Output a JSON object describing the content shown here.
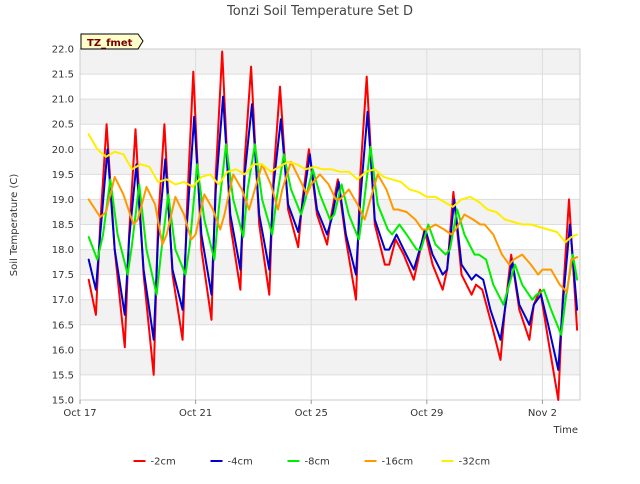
{
  "chart_data": {
    "type": "line",
    "title": "Tonzi Soil Temperature Set D",
    "xlabel": "Time",
    "ylabel": "Soil Temperature (C)",
    "annotation": "TZ_fmet",
    "xlim": [
      0,
      17.3
    ],
    "ylim": [
      15.0,
      22.0
    ],
    "grid": true,
    "legend_position": "bottom",
    "x_ticks": [
      {
        "x": 0,
        "label": "Oct 17"
      },
      {
        "x": 4,
        "label": "Oct 21"
      },
      {
        "x": 8,
        "label": "Oct 25"
      },
      {
        "x": 12,
        "label": "Oct 29"
      },
      {
        "x": 16,
        "label": "Nov 2"
      }
    ],
    "y_ticks": [
      "15.0",
      "15.5",
      "16.0",
      "16.5",
      "17.0",
      "17.5",
      "18.0",
      "18.5",
      "19.0",
      "19.5",
      "20.0",
      "20.5",
      "21.0",
      "21.5",
      "22.0"
    ],
    "series": [
      {
        "name": "-2cm",
        "color": "#ff0000",
        "x": [
          0.3,
          0.55,
          0.7,
          0.92,
          1.2,
          1.55,
          1.7,
          1.92,
          2.2,
          2.55,
          2.7,
          2.92,
          3.2,
          3.55,
          3.7,
          3.92,
          4.2,
          4.55,
          4.7,
          4.92,
          5.2,
          5.55,
          5.7,
          5.92,
          6.2,
          6.55,
          6.7,
          6.92,
          7.2,
          7.55,
          7.7,
          7.92,
          8.2,
          8.55,
          8.7,
          8.92,
          9.2,
          9.55,
          9.7,
          9.92,
          10.2,
          10.55,
          10.7,
          10.92,
          11.2,
          11.55,
          11.7,
          11.92,
          12.2,
          12.55,
          12.7,
          12.92,
          13.2,
          13.55,
          13.7,
          13.92,
          14.2,
          14.55,
          14.7,
          14.92,
          15.2,
          15.55,
          15.7,
          15.92,
          16.2,
          16.55,
          16.7,
          16.92,
          17.2
        ],
        "y": [
          17.4,
          16.7,
          18.5,
          20.5,
          18.0,
          16.05,
          18.3,
          20.4,
          17.5,
          15.5,
          18.5,
          20.5,
          17.5,
          16.2,
          18.8,
          21.55,
          18.0,
          16.6,
          19.5,
          21.95,
          18.5,
          17.2,
          19.8,
          21.65,
          18.5,
          17.1,
          19.5,
          21.25,
          18.8,
          18.05,
          19.0,
          20.0,
          18.7,
          18.1,
          18.7,
          19.4,
          18.2,
          17.0,
          19.5,
          21.45,
          18.5,
          17.7,
          17.7,
          18.2,
          17.9,
          17.4,
          17.8,
          18.4,
          17.7,
          17.2,
          17.6,
          19.15,
          17.5,
          17.1,
          17.3,
          17.2,
          16.6,
          15.8,
          16.8,
          17.9,
          16.8,
          16.2,
          16.9,
          17.2,
          16.2,
          15.0,
          17.0,
          19.0,
          16.4
        ]
      },
      {
        "name": "-4cm",
        "color": "#0000cc",
        "x": [
          0.3,
          0.55,
          0.7,
          0.95,
          1.2,
          1.55,
          1.7,
          1.95,
          2.2,
          2.55,
          2.7,
          2.95,
          3.2,
          3.55,
          3.7,
          3.95,
          4.2,
          4.55,
          4.7,
          4.95,
          5.2,
          5.55,
          5.7,
          5.95,
          6.2,
          6.55,
          6.7,
          6.95,
          7.2,
          7.55,
          7.7,
          7.95,
          8.2,
          8.55,
          8.7,
          8.95,
          9.2,
          9.55,
          9.7,
          9.95,
          10.2,
          10.55,
          10.7,
          10.95,
          11.2,
          11.55,
          11.7,
          11.95,
          12.2,
          12.55,
          12.7,
          12.95,
          13.2,
          13.55,
          13.7,
          13.95,
          14.2,
          14.55,
          14.7,
          14.95,
          15.2,
          15.55,
          15.7,
          15.95,
          16.2,
          16.55,
          16.7,
          16.95,
          17.2
        ],
        "y": [
          17.8,
          17.2,
          18.3,
          20.0,
          18.0,
          16.7,
          18.2,
          19.7,
          17.6,
          16.2,
          18.2,
          19.8,
          17.6,
          16.8,
          18.5,
          20.65,
          18.3,
          17.1,
          19.2,
          21.05,
          18.7,
          17.6,
          19.5,
          20.9,
          18.7,
          17.6,
          19.3,
          20.6,
          18.9,
          18.35,
          18.9,
          19.9,
          18.8,
          18.3,
          18.6,
          19.35,
          18.3,
          17.5,
          19.0,
          20.75,
          18.6,
          18.0,
          18.0,
          18.3,
          18.0,
          17.6,
          17.9,
          18.4,
          17.9,
          17.5,
          17.6,
          19.0,
          17.7,
          17.4,
          17.5,
          17.4,
          16.8,
          16.2,
          16.8,
          17.8,
          16.9,
          16.5,
          16.9,
          17.1,
          16.5,
          15.6,
          16.9,
          18.5,
          16.8
        ]
      },
      {
        "name": "-8cm",
        "color": "#00ee00",
        "x": [
          0.3,
          0.6,
          0.8,
          1.05,
          1.3,
          1.65,
          1.8,
          2.05,
          2.3,
          2.65,
          2.8,
          3.05,
          3.3,
          3.65,
          3.8,
          4.05,
          4.3,
          4.65,
          4.8,
          5.05,
          5.3,
          5.65,
          5.8,
          6.05,
          6.3,
          6.65,
          6.8,
          7.05,
          7.3,
          7.65,
          7.8,
          8.05,
          8.3,
          8.65,
          8.8,
          9.05,
          9.3,
          9.65,
          9.8,
          10.05,
          10.3,
          10.65,
          10.8,
          11.05,
          11.3,
          11.65,
          11.8,
          12.05,
          12.3,
          12.65,
          12.8,
          13.05,
          13.3,
          13.65,
          13.8,
          14.05,
          14.3,
          14.65,
          14.8,
          15.05,
          15.3,
          15.65,
          15.8,
          16.05,
          16.3,
          16.65,
          16.8,
          17.05,
          17.2
        ],
        "y": [
          18.25,
          17.8,
          18.3,
          19.4,
          18.3,
          17.5,
          18.1,
          19.3,
          18.0,
          17.1,
          17.9,
          19.1,
          18.0,
          17.5,
          18.1,
          19.7,
          18.6,
          17.8,
          18.8,
          20.1,
          19.0,
          18.25,
          19.2,
          20.1,
          19.0,
          18.3,
          19.0,
          19.9,
          19.2,
          18.7,
          19.0,
          19.6,
          19.1,
          18.6,
          18.7,
          19.3,
          18.7,
          18.2,
          18.8,
          20.05,
          18.9,
          18.4,
          18.3,
          18.5,
          18.3,
          18.0,
          18.0,
          18.5,
          18.1,
          17.9,
          18.0,
          18.8,
          18.3,
          17.9,
          17.9,
          17.8,
          17.3,
          16.9,
          17.2,
          17.7,
          17.3,
          17.0,
          17.1,
          17.2,
          16.8,
          16.3,
          17.0,
          17.9,
          17.4
        ]
      },
      {
        "name": "-16cm",
        "color": "#ff9900",
        "x": [
          0.3,
          0.7,
          0.9,
          1.2,
          1.5,
          1.85,
          2.0,
          2.3,
          2.6,
          2.85,
          3.0,
          3.3,
          3.6,
          3.85,
          4.0,
          4.3,
          4.6,
          4.85,
          5.0,
          5.3,
          5.6,
          5.85,
          6.0,
          6.3,
          6.6,
          6.85,
          7.0,
          7.3,
          7.6,
          7.85,
          8.0,
          8.3,
          8.6,
          8.85,
          9.0,
          9.3,
          9.6,
          9.85,
          10.0,
          10.3,
          10.6,
          10.85,
          11.0,
          11.3,
          11.6,
          11.85,
          12.0,
          12.3,
          12.6,
          12.85,
          13.0,
          13.3,
          13.6,
          13.85,
          14.0,
          14.3,
          14.6,
          14.85,
          15.0,
          15.3,
          15.6,
          15.85,
          16.0,
          16.3,
          16.6,
          16.85,
          17.0,
          17.2
        ],
        "y": [
          19.0,
          18.65,
          18.75,
          19.45,
          19.1,
          18.5,
          18.6,
          19.25,
          18.9,
          18.1,
          18.3,
          19.05,
          18.7,
          18.2,
          18.3,
          19.1,
          18.8,
          18.4,
          18.7,
          19.5,
          19.2,
          18.8,
          19.1,
          19.7,
          19.3,
          18.8,
          19.2,
          19.75,
          19.4,
          19.1,
          19.3,
          19.5,
          19.3,
          19.0,
          19.0,
          19.2,
          18.9,
          18.6,
          18.9,
          19.5,
          19.2,
          18.8,
          18.8,
          18.75,
          18.6,
          18.4,
          18.4,
          18.5,
          18.4,
          18.3,
          18.4,
          18.7,
          18.6,
          18.5,
          18.5,
          18.3,
          17.9,
          17.7,
          17.8,
          17.9,
          17.7,
          17.5,
          17.6,
          17.6,
          17.3,
          17.15,
          17.8,
          17.85
        ]
      },
      {
        "name": "-32cm",
        "color": "#ffee00",
        "x": [
          0.3,
          0.6,
          0.9,
          1.2,
          1.5,
          1.8,
          2.1,
          2.4,
          2.7,
          3.0,
          3.3,
          3.6,
          3.9,
          4.2,
          4.5,
          4.8,
          5.1,
          5.4,
          5.7,
          6.0,
          6.3,
          6.6,
          6.9,
          7.2,
          7.5,
          7.8,
          8.1,
          8.4,
          8.7,
          9.0,
          9.3,
          9.6,
          9.9,
          10.2,
          10.5,
          10.8,
          11.1,
          11.4,
          11.7,
          12.0,
          12.3,
          12.6,
          12.9,
          13.2,
          13.5,
          13.8,
          14.1,
          14.4,
          14.7,
          15.0,
          15.3,
          15.6,
          15.9,
          16.2,
          16.5,
          16.8,
          17.0,
          17.2
        ],
        "y": [
          20.3,
          20.0,
          19.85,
          19.95,
          19.9,
          19.6,
          19.7,
          19.65,
          19.35,
          19.4,
          19.3,
          19.35,
          19.25,
          19.45,
          19.5,
          19.3,
          19.55,
          19.6,
          19.5,
          19.7,
          19.7,
          19.55,
          19.65,
          19.75,
          19.7,
          19.6,
          19.65,
          19.6,
          19.6,
          19.55,
          19.55,
          19.4,
          19.55,
          19.6,
          19.45,
          19.4,
          19.35,
          19.2,
          19.15,
          19.05,
          19.05,
          18.95,
          18.85,
          19.0,
          19.05,
          18.95,
          18.8,
          18.75,
          18.6,
          18.55,
          18.5,
          18.5,
          18.45,
          18.4,
          18.35,
          18.15,
          18.25,
          18.3
        ]
      }
    ]
  }
}
